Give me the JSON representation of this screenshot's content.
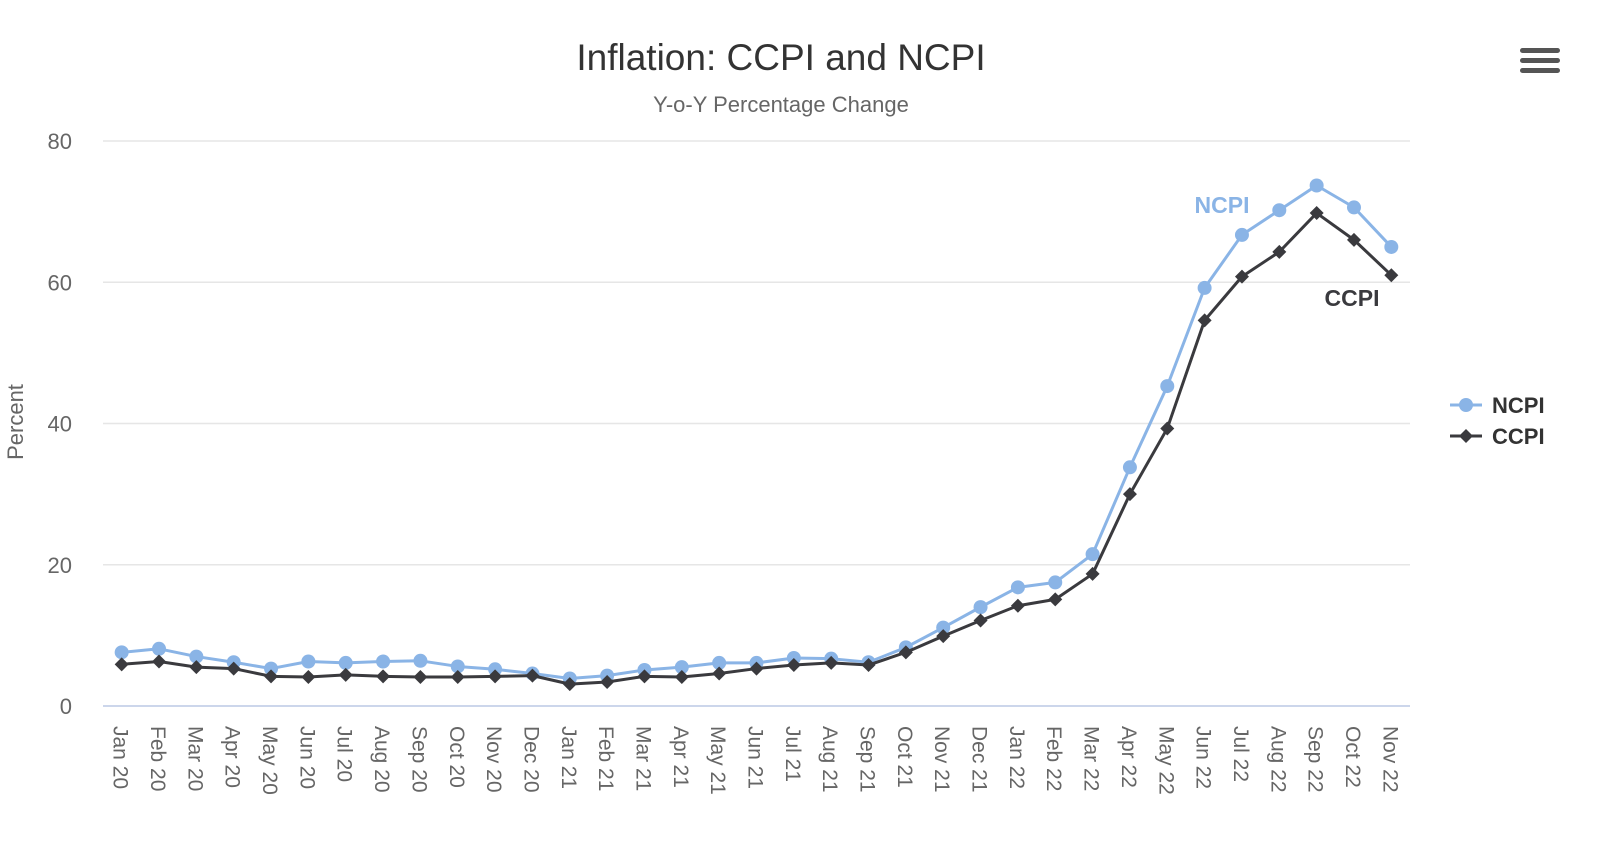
{
  "chart_data": {
    "type": "line",
    "title": "Inflation: CCPI and NCPI",
    "subtitle": "Y-o-Y Percentage Change",
    "xlabel": "",
    "ylabel": "Percent",
    "ylim": [
      0,
      80
    ],
    "yticks": [
      "0",
      "20",
      "40",
      "60",
      "80"
    ],
    "grid": true,
    "legend_position": "right",
    "categories": [
      "Jan 20",
      "Feb 20",
      "Mar 20",
      "Apr 20",
      "May 20",
      "Jun 20",
      "Jul 20",
      "Aug 20",
      "Sep 20",
      "Oct 20",
      "Nov 20",
      "Dec 20",
      "Jan 21",
      "Feb 21",
      "Mar 21",
      "Apr 21",
      "May 21",
      "Jun 21",
      "Jul 21",
      "Aug 21",
      "Sep 21",
      "Oct 21",
      "Nov 21",
      "Dec 21",
      "Jan 22",
      "Feb 22",
      "Mar 22",
      "Apr 22",
      "May 22",
      "Jun 22",
      "Jul 22",
      "Aug 22",
      "Sep 22",
      "Oct 22",
      "Nov 22"
    ],
    "series": [
      {
        "name": "NCPI",
        "color": "#8ab4e6",
        "marker": "circle",
        "end_label": "NCPI",
        "values": [
          7.6,
          8.1,
          7.0,
          6.2,
          5.3,
          6.3,
          6.1,
          6.3,
          6.4,
          5.6,
          5.2,
          4.6,
          3.9,
          4.3,
          5.1,
          5.5,
          6.1,
          6.1,
          6.8,
          6.7,
          6.2,
          8.3,
          11.1,
          14.0,
          16.8,
          17.5,
          21.5,
          33.8,
          45.3,
          59.2,
          66.7,
          70.2,
          73.7,
          70.6,
          65.0
        ]
      },
      {
        "name": "CCPI",
        "color": "#3a3a3e",
        "marker": "diamond",
        "end_label": "CCPI",
        "values": [
          5.9,
          6.3,
          5.5,
          5.3,
          4.2,
          4.1,
          4.4,
          4.2,
          4.1,
          4.1,
          4.2,
          4.3,
          3.1,
          3.4,
          4.2,
          4.1,
          4.6,
          5.3,
          5.8,
          6.1,
          5.8,
          7.6,
          9.9,
          12.1,
          14.2,
          15.1,
          18.7,
          30.0,
          39.3,
          54.6,
          60.8,
          64.3,
          69.8,
          66.0,
          61.0
        ]
      }
    ]
  },
  "toolbar": {
    "menu_icon": "hamburger-menu-icon"
  }
}
